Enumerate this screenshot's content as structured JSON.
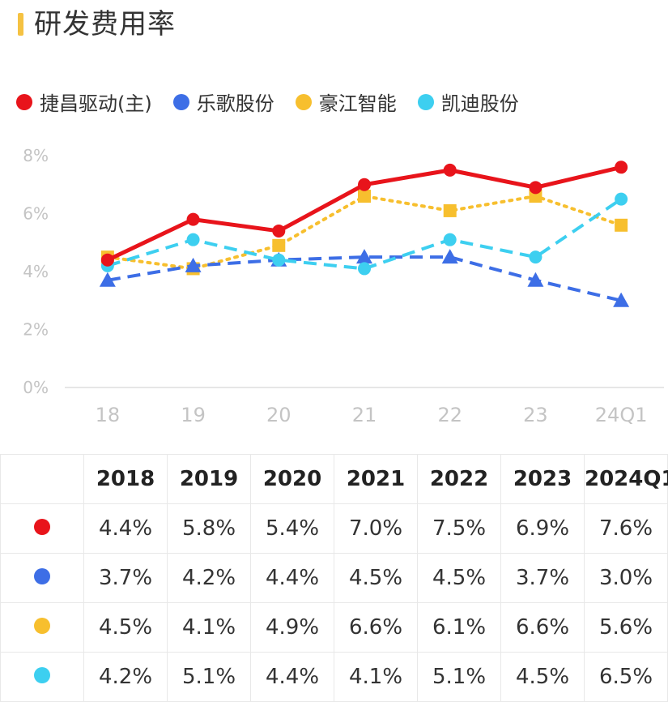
{
  "title": "研发费用率",
  "colors": {
    "accent_bar": "#f5c242",
    "series": [
      "#e8141b",
      "#3d6ee6",
      "#f7bf2e",
      "#3dcff0"
    ],
    "axis_text": "#c4c4c4",
    "grid": "#e6e6e6"
  },
  "legend": [
    "捷昌驱动(主)",
    "乐歌股份",
    "豪江智能",
    "凯迪股份"
  ],
  "chart_data": {
    "type": "line",
    "title": "研发费用率",
    "categories": [
      "18",
      "19",
      "20",
      "21",
      "22",
      "23",
      "24Q1"
    ],
    "y_ticks": [
      "0%",
      "2%",
      "4%",
      "6%",
      "8%"
    ],
    "ylim": [
      0,
      8
    ],
    "grid": false,
    "legend_position": "top-left",
    "series": [
      {
        "name": "捷昌驱动(主)",
        "values": [
          4.4,
          5.8,
          5.4,
          7.0,
          7.5,
          6.9,
          7.6
        ],
        "style": "solid",
        "marker": "circle"
      },
      {
        "name": "乐歌股份",
        "values": [
          3.7,
          4.2,
          4.4,
          4.5,
          4.5,
          3.7,
          3.0
        ],
        "style": "dashed",
        "marker": "triangle"
      },
      {
        "name": "豪江智能",
        "values": [
          4.5,
          4.1,
          4.9,
          6.6,
          6.1,
          6.6,
          5.6
        ],
        "style": "dotted",
        "marker": "square"
      },
      {
        "name": "凯迪股份",
        "values": [
          4.2,
          5.1,
          4.4,
          4.1,
          5.1,
          4.5,
          6.5
        ],
        "style": "dashed",
        "marker": "circle"
      }
    ]
  },
  "table": {
    "headers": [
      "2018",
      "2019",
      "2020",
      "2021",
      "2022",
      "2023",
      "2024Q1"
    ],
    "rows": [
      [
        "4.4%",
        "5.8%",
        "5.4%",
        "7.0%",
        "7.5%",
        "6.9%",
        "7.6%"
      ],
      [
        "3.7%",
        "4.2%",
        "4.4%",
        "4.5%",
        "4.5%",
        "3.7%",
        "3.0%"
      ],
      [
        "4.5%",
        "4.1%",
        "4.9%",
        "6.6%",
        "6.1%",
        "6.6%",
        "5.6%"
      ],
      [
        "4.2%",
        "5.1%",
        "4.4%",
        "4.1%",
        "5.1%",
        "4.5%",
        "6.5%"
      ]
    ]
  }
}
